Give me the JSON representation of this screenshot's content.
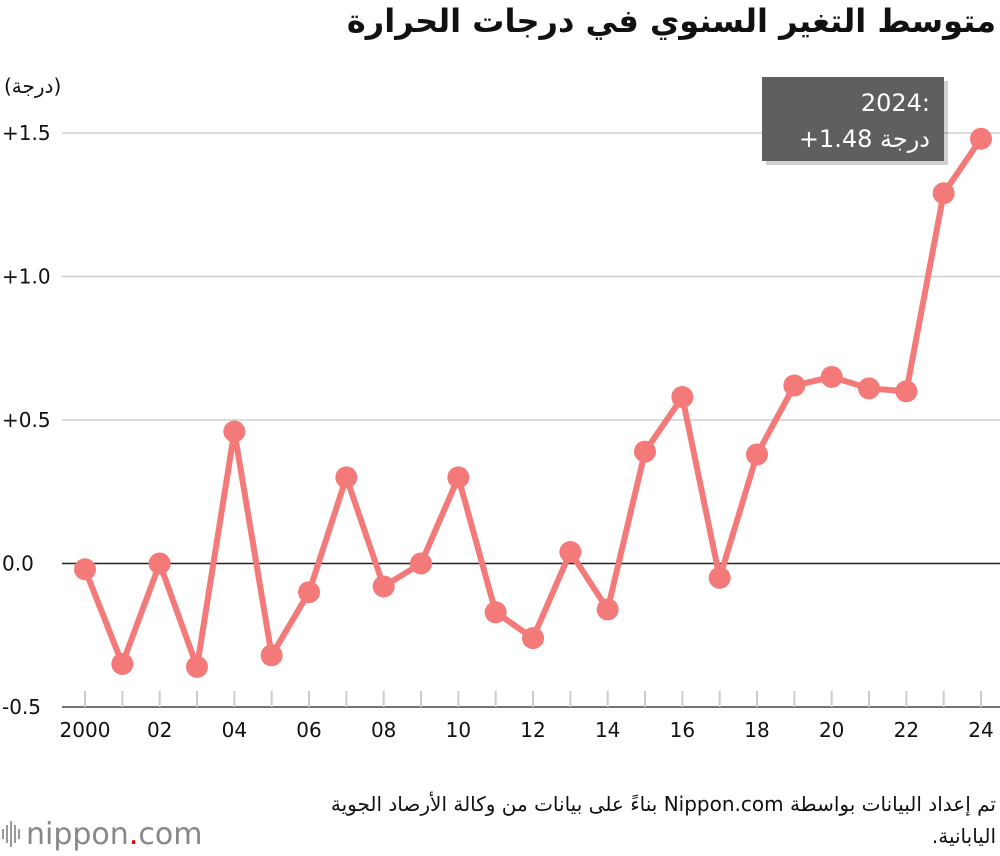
{
  "title": "متوسط التغير السنوي في درجات الحرارة",
  "chart_data": {
    "type": "line",
    "title": "متوسط التغير السنوي في درجات الحرارة",
    "ylabel": "(درجة)",
    "xlabel": "",
    "x": [
      2000,
      2001,
      2002,
      2003,
      2004,
      2005,
      2006,
      2007,
      2008,
      2009,
      2010,
      2011,
      2012,
      2013,
      2014,
      2015,
      2016,
      2017,
      2018,
      2019,
      2020,
      2021,
      2022,
      2023,
      2024
    ],
    "series": [
      {
        "values": [
          -0.02,
          -0.35,
          0.0,
          -0.36,
          0.46,
          -0.32,
          -0.1,
          0.3,
          -0.08,
          0.0,
          0.3,
          -0.17,
          -0.26,
          0.04,
          -0.16,
          0.39,
          0.58,
          -0.05,
          0.38,
          0.62,
          0.65,
          0.61,
          0.6,
          1.29,
          1.48
        ]
      }
    ],
    "x_tick_values": [
      2000,
      2002,
      2004,
      2006,
      2008,
      2010,
      2012,
      2014,
      2016,
      2018,
      2020,
      2022,
      2024
    ],
    "x_tick_labels": [
      "2000",
      "02",
      "04",
      "06",
      "08",
      "10",
      "12",
      "14",
      "16",
      "18",
      "20",
      "22",
      "24"
    ],
    "y_ticks": [
      -0.5,
      0.0,
      0.5,
      1.0,
      1.5
    ],
    "y_tick_labels": [
      "-0.5",
      "0.0",
      "+0.5",
      "+1.0",
      "+1.5"
    ],
    "ylim": [
      -0.5,
      1.5
    ],
    "grid": true,
    "line_color": "#f47a7a",
    "annotation": {
      "year_line": "2024:",
      "value_line": "+1.48 درجة"
    }
  },
  "source_text": "تم إعداد البيانات بواسطة Nippon.com بناءً على بيانات من وكالة الأرصاد الجوية اليابانية.",
  "logo": {
    "name": "nippon",
    "dot": ".",
    "suffix": "com"
  }
}
